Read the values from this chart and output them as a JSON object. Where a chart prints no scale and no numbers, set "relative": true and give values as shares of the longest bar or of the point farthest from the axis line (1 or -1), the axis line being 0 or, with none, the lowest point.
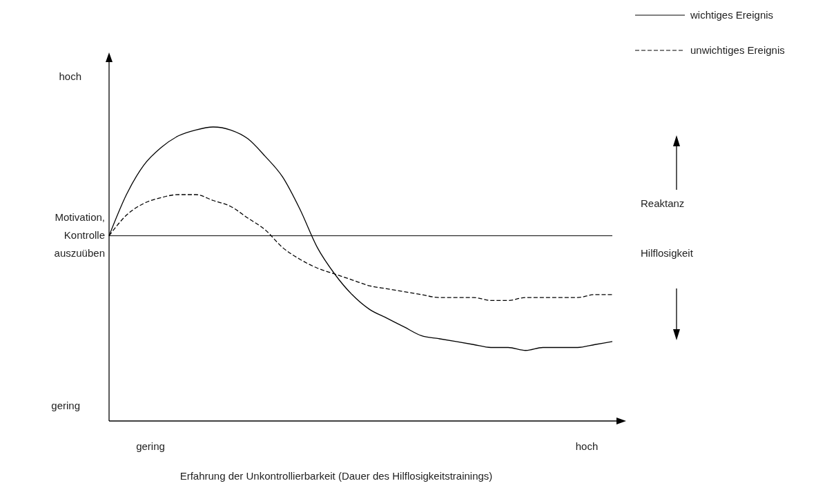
{
  "chart_data": {
    "type": "line",
    "relative": true,
    "xlabel": "Erfahrung der Unkontrollierbarkeit (Dauer des Hilflosigkeitstrainings)",
    "categories": [
      null,
      null,
      null,
      null,
      null,
      null,
      null,
      null,
      null,
      null,
      null,
      null,
      null,
      null,
      null,
      null,
      null,
      null,
      null,
      null,
      null,
      null,
      null,
      null,
      null,
      null,
      null,
      null,
      null,
      null
    ],
    "series": [
      {
        "name": "wichtiges Ereignis",
        "color": "#000000",
        "line_style": "solid",
        "values": [
          0.63,
          0.77,
          0.87,
          0.93,
          0.97,
          0.99,
          1,
          0.99,
          0.96,
          0.9,
          0.83,
          0.72,
          0.59,
          0.5,
          0.43,
          0.38,
          0.35,
          0.32,
          0.29,
          0.28,
          0.27,
          0.26,
          0.25,
          0.25,
          0.24,
          0.25,
          0.25,
          0.25,
          0.26,
          0.27
        ]
      },
      {
        "name": "unwichtiges Ereignis",
        "color": "#000000",
        "line_style": "dashed",
        "values": [
          0.63,
          0.7,
          0.74,
          0.76,
          0.77,
          0.77,
          0.75,
          0.73,
          0.69,
          0.65,
          0.59,
          0.55,
          0.52,
          0.5,
          0.48,
          0.46,
          0.45,
          0.44,
          0.43,
          0.42,
          0.42,
          0.42,
          0.41,
          0.41,
          0.42,
          0.42,
          0.42,
          0.42,
          0.43,
          0.43
        ]
      }
    ],
    "ref_lines": [
      {
        "axis": "y",
        "value": 0.63,
        "label": "Motivation, Kontrolle auszuüben",
        "color": "#000000"
      }
    ],
    "annotations": [
      "hoch",
      "gering",
      "gering",
      "hoch",
      "Reaktanz",
      "Hilflosigkeit"
    ],
    "legend": "top right"
  }
}
